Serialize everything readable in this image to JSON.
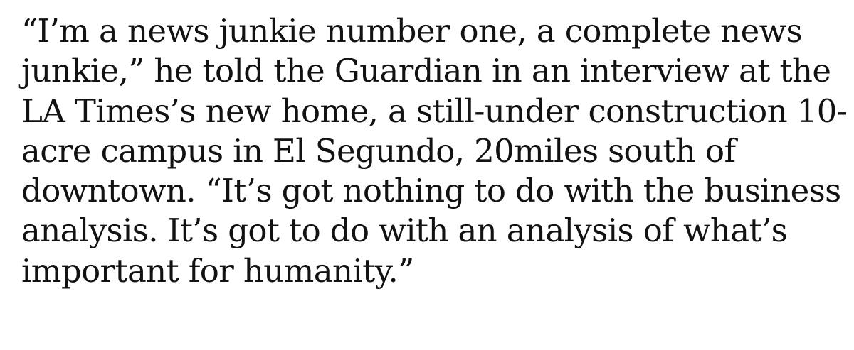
{
  "article": {
    "lines": [
      "“I’m a news junkie number one, a complete news",
      "junkie,” he told the Guardian in an interview at the",
      "LA Times’s new home, a still-under construction 10-",
      "acre campus in El Segundo, 20miles south of",
      "downtown. “It’s got nothing to do with the business",
      "analysis. It’s got to do with an analysis of what’s",
      "important for humanity.”"
    ]
  }
}
